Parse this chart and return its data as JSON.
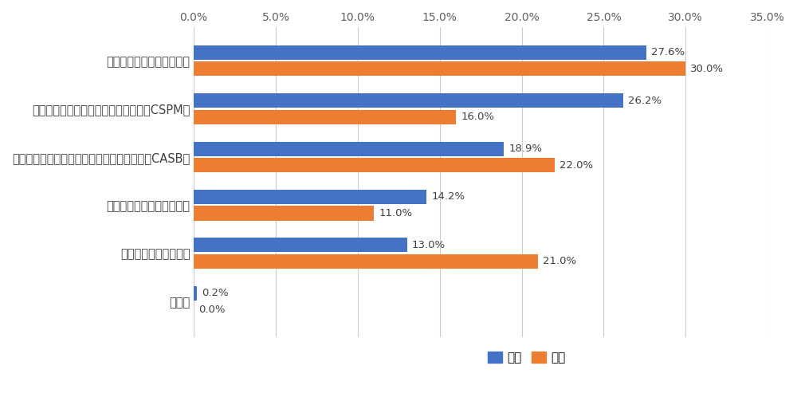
{
  "categories": [
    "ネットワークセキュリティ",
    "クラウドセキュリティポスチャ管理（CSPM）",
    "クラウドアクセスセキュリティブローカー（CASB）",
    "ワークロードセキュリティ",
    "コンテナセキュリティ",
    "その他"
  ],
  "zentai_values": [
    27.6,
    26.2,
    18.9,
    14.2,
    13.0,
    0.2
  ],
  "japan_values": [
    30.0,
    16.0,
    22.0,
    11.0,
    21.0,
    0.0
  ],
  "zentai_color": "#4472c4",
  "japan_color": "#ed7d31",
  "xlim": [
    0,
    35.0
  ],
  "xticks": [
    0.0,
    5.0,
    10.0,
    15.0,
    20.0,
    25.0,
    30.0,
    35.0
  ],
  "xtick_labels": [
    "0.0%",
    "5.0%",
    "10.0%",
    "15.0%",
    "20.0%",
    "25.0%",
    "30.0%",
    "35.0%"
  ],
  "legend_zentai": "全体",
  "legend_japan": "日本",
  "bar_height": 0.3,
  "bar_gap": 0.04,
  "label_fontsize": 9.5,
  "tick_fontsize": 10,
  "ytick_fontsize": 10.5,
  "background_color": "#ffffff",
  "grid_color": "#cccccc"
}
